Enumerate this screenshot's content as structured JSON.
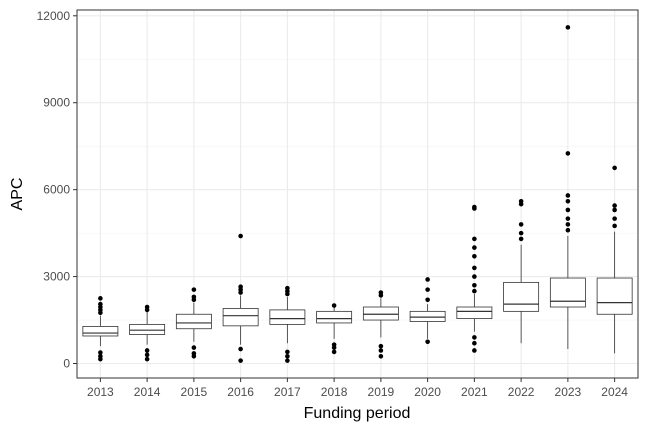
{
  "chart_data": {
    "type": "box",
    "xlabel": "Funding period",
    "ylabel": "APC",
    "ylim": [
      -500,
      12200
    ],
    "yticks": [
      0,
      3000,
      6000,
      9000,
      12000
    ],
    "yticklabels": [
      "0",
      "3000",
      "6000",
      "9000",
      "12000"
    ],
    "categories": [
      "2013",
      "2014",
      "2015",
      "2016",
      "2017",
      "2018",
      "2019",
      "2020",
      "2021",
      "2022",
      "2023",
      "2024"
    ],
    "grid": true,
    "boxes": [
      {
        "x": "2013",
        "q1": 950,
        "median": 1050,
        "q3": 1280,
        "whisker_low": 600,
        "whisker_high": 1650,
        "outliers": [
          150,
          250,
          380,
          1750,
          1850,
          1950,
          2050,
          2250
        ]
      },
      {
        "x": "2014",
        "q1": 1000,
        "median": 1150,
        "q3": 1350,
        "whisker_low": 650,
        "whisker_high": 1800,
        "outliers": [
          150,
          300,
          450,
          1850,
          1950
        ]
      },
      {
        "x": "2015",
        "q1": 1200,
        "median": 1400,
        "q3": 1700,
        "whisker_low": 750,
        "whisker_high": 2100,
        "outliers": [
          250,
          350,
          550,
          2200,
          2300,
          2550
        ]
      },
      {
        "x": "2016",
        "q1": 1300,
        "median": 1650,
        "q3": 1900,
        "whisker_low": 650,
        "whisker_high": 2350,
        "outliers": [
          100,
          500,
          2450,
          2550,
          2650,
          4400
        ]
      },
      {
        "x": "2017",
        "q1": 1350,
        "median": 1550,
        "q3": 1850,
        "whisker_low": 700,
        "whisker_high": 2300,
        "outliers": [
          100,
          250,
          400,
          2400,
          2500,
          2600
        ]
      },
      {
        "x": "2018",
        "q1": 1400,
        "median": 1550,
        "q3": 1800,
        "whisker_low": 850,
        "whisker_high": 1950,
        "outliers": [
          400,
          550,
          650,
          2000
        ]
      },
      {
        "x": "2019",
        "q1": 1500,
        "median": 1700,
        "q3": 1950,
        "whisker_low": 900,
        "whisker_high": 2250,
        "outliers": [
          250,
          450,
          600,
          2350,
          2450
        ]
      },
      {
        "x": "2020",
        "q1": 1450,
        "median": 1600,
        "q3": 1800,
        "whisker_low": 850,
        "whisker_high": 2050,
        "outliers": [
          750,
          2200,
          2550,
          2900
        ]
      },
      {
        "x": "2021",
        "q1": 1550,
        "median": 1800,
        "q3": 1950,
        "whisker_low": 1100,
        "whisker_high": 2400,
        "outliers": [
          450,
          700,
          900,
          2500,
          2700,
          3000,
          3300,
          3700,
          4000,
          4300,
          5350,
          5400
        ]
      },
      {
        "x": "2022",
        "q1": 1800,
        "median": 2050,
        "q3": 2800,
        "whisker_low": 700,
        "whisker_high": 4100,
        "outliers": [
          4300,
          4500,
          4800,
          5500,
          5600
        ]
      },
      {
        "x": "2023",
        "q1": 1950,
        "median": 2150,
        "q3": 2950,
        "whisker_low": 500,
        "whisker_high": 4400,
        "outliers": [
          4600,
          4800,
          5000,
          5300,
          5600,
          5800,
          7250,
          11600
        ]
      },
      {
        "x": "2024",
        "q1": 1700,
        "median": 2100,
        "q3": 2950,
        "whisker_low": 350,
        "whisker_high": 4550,
        "outliers": [
          4750,
          5000,
          5300,
          5450,
          6750
        ]
      }
    ]
  }
}
